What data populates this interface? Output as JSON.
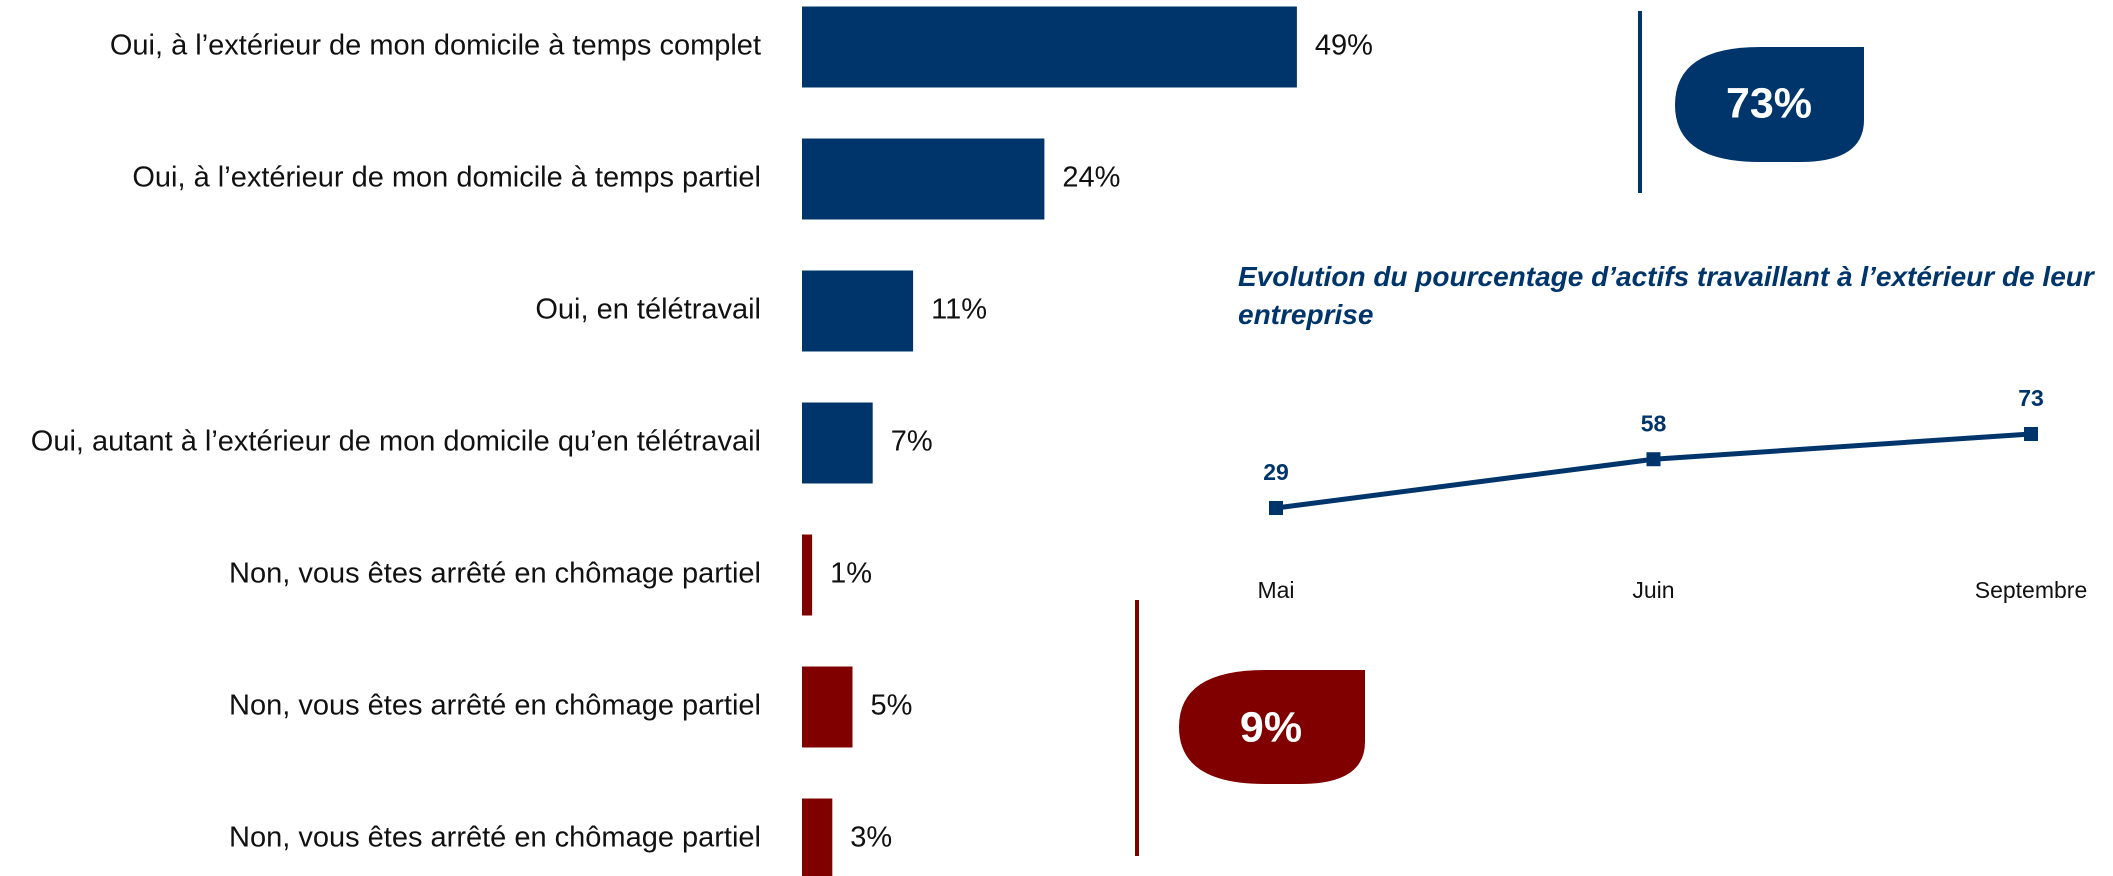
{
  "chart_data": [
    {
      "type": "barh",
      "categories": [
        "Oui, à l’extérieur de mon domicile à temps complet",
        "Oui, à l’extérieur de mon domicile à temps partiel",
        "Oui, en télétravail",
        "Oui, autant à l’extérieur de mon domicile qu’en télétravail",
        "Non, vous êtes arrêté en chômage partiel",
        "Non, vous êtes arrêté en chômage partiel",
        "Non, vous êtes arrêté en chômage partiel"
      ],
      "values": [
        49,
        24,
        11,
        7,
        1,
        5,
        3
      ],
      "value_labels": [
        "49%",
        "24%",
        "11%",
        "7%",
        "1%",
        "5%",
        "3%"
      ],
      "colors": [
        "#00356b",
        "#00356b",
        "#00356b",
        "#00356b",
        "#800000",
        "#800000",
        "#800000"
      ],
      "annotations": [
        "73%",
        "9%"
      ]
    },
    {
      "type": "line",
      "title": "Evolution du pourcentage d’actifs travaillant à l’extérieur de leur entreprise",
      "categories": [
        "Mai",
        "Juin",
        "Septembre"
      ],
      "values": [
        29,
        58,
        73
      ],
      "color": "#00356b"
    }
  ]
}
